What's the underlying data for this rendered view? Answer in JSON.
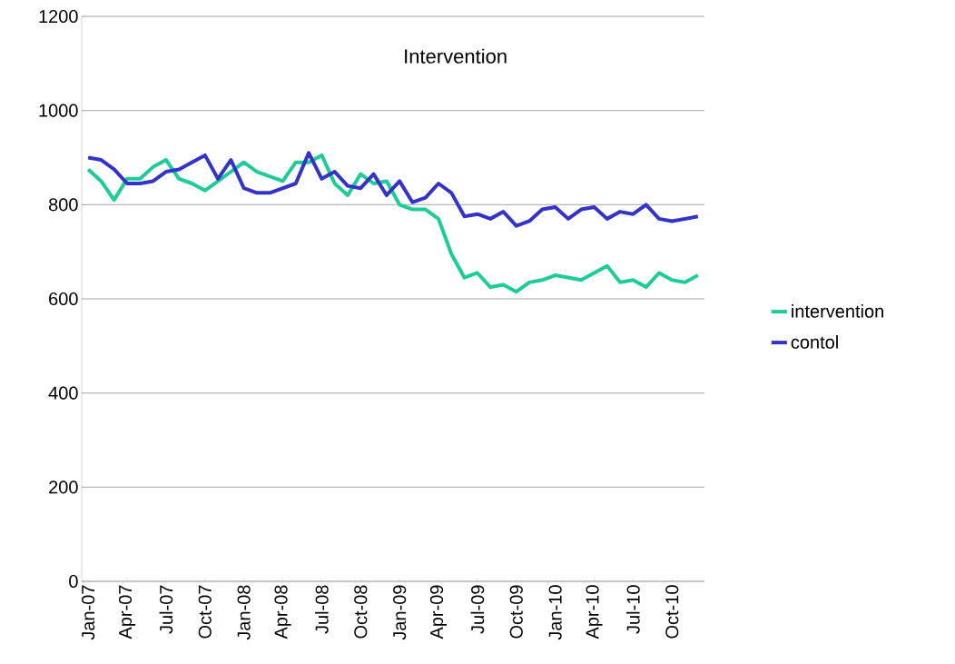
{
  "chart_data": {
    "type": "line",
    "title": "Intervention",
    "categories": [
      "Jan-07",
      null,
      null,
      "Apr-07",
      null,
      null,
      "Jul-07",
      null,
      null,
      "Oct-07",
      null,
      null,
      "Jan-08",
      null,
      null,
      "Apr-08",
      null,
      null,
      "Jul-08",
      null,
      null,
      "Oct-08",
      null,
      null,
      "Jan-09",
      null,
      null,
      "Apr-09",
      null,
      null,
      "Jul-09",
      null,
      null,
      "Oct-09",
      null,
      null,
      "Jan-10",
      null,
      null,
      "Apr-10",
      null,
      null,
      "Jul-10",
      null,
      null,
      "Oct-10",
      null,
      null
    ],
    "series": [
      {
        "name": "intervention",
        "color": "#1ecc98",
        "values": [
          875,
          850,
          810,
          855,
          855,
          880,
          895,
          855,
          845,
          830,
          850,
          870,
          890,
          870,
          860,
          850,
          890,
          890,
          905,
          845,
          820,
          865,
          845,
          850,
          800,
          790,
          790,
          770,
          695,
          645,
          655,
          625,
          630,
          615,
          635,
          640,
          650,
          645,
          640,
          655,
          670,
          635,
          640,
          625,
          655,
          640,
          635,
          650
        ]
      },
      {
        "name": "contol",
        "color": "#3333c8",
        "values": [
          900,
          895,
          875,
          845,
          845,
          850,
          870,
          875,
          890,
          905,
          855,
          895,
          835,
          825,
          825,
          835,
          845,
          910,
          855,
          870,
          840,
          835,
          865,
          820,
          850,
          805,
          815,
          845,
          825,
          775,
          780,
          770,
          785,
          755,
          765,
          790,
          795,
          770,
          790,
          795,
          770,
          785,
          780,
          800,
          770,
          765,
          770,
          775
        ]
      }
    ],
    "ylim": [
      0,
      1200
    ],
    "yticks": [
      0,
      200,
      400,
      600,
      800,
      1000,
      1200
    ],
    "grid": "y",
    "legend": "right",
    "marker": "none",
    "line_style": "solid"
  }
}
